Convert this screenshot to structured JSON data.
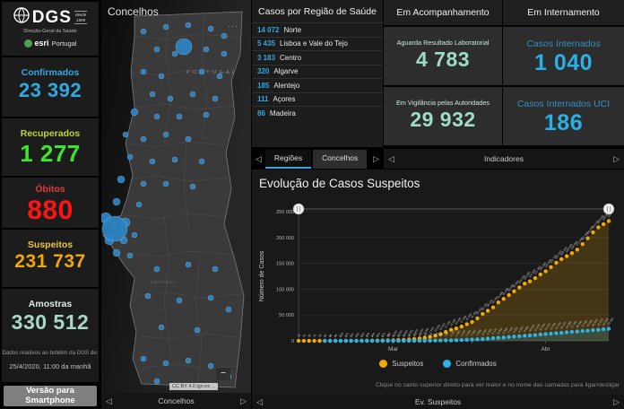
{
  "logo": {
    "org": "DGS",
    "since_line1": "desde",
    "since_line2": "1899",
    "subtitle": "Direção-Geral da Saúde",
    "partner_bold": "esri",
    "partner_rest": "Portugal"
  },
  "sidebar": {
    "stats": [
      {
        "label": "Confirmados",
        "value": "23 392",
        "label_color": "#2fa8e0",
        "value_color": "#2fa8e0"
      },
      {
        "label": "Recuperados",
        "value": "1 277",
        "label_color": "#b9d437",
        "value_color": "#3fe42c"
      },
      {
        "label": "Óbitos",
        "value": "880",
        "label_color": "#e03a3a",
        "value_color": "#ff1414"
      },
      {
        "label": "Suspeitos",
        "value": "231 737",
        "label_color": "#e8c63f",
        "value_color": "#f2a900"
      },
      {
        "label": "Amostras",
        "value": "330 512",
        "label_color": "#dfe9e5",
        "value_color": "#a6d9c6"
      }
    ],
    "footnote_line1": "Dados relativos ao boletim da DGS de:",
    "footnote_line2": "25/4/2020, 11:00 da manhã",
    "smartphone_button": "Versão para Smartphone"
  },
  "map_panel": {
    "title": "Concelhos",
    "overflow_dots": "···",
    "zoom_out_label": "−",
    "attribution": "CC BY 4.0 ign.es ...",
    "footer_label": "Concelhos",
    "country_label": "P O R T U G A L",
    "district_label": "S E T Ú B A L",
    "bubble_color": "#2c85c7",
    "bubbles": [
      [
        47,
        35,
        3
      ],
      [
        72,
        30,
        3
      ],
      [
        97,
        28,
        3
      ],
      [
        122,
        32,
        3
      ],
      [
        137,
        40,
        3
      ],
      [
        62,
        55,
        3
      ],
      [
        82,
        60,
        3
      ],
      [
        117,
        55,
        3
      ],
      [
        137,
        60,
        3
      ],
      [
        47,
        80,
        3
      ],
      [
        67,
        85,
        3
      ],
      [
        112,
        80,
        3
      ],
      [
        132,
        85,
        3
      ],
      [
        57,
        105,
        3
      ],
      [
        77,
        110,
        3
      ],
      [
        102,
        105,
        3
      ],
      [
        127,
        110,
        3
      ],
      [
        37,
        125,
        4
      ],
      [
        62,
        130,
        3
      ],
      [
        87,
        130,
        3
      ],
      [
        117,
        128,
        3
      ],
      [
        27,
        150,
        3
      ],
      [
        47,
        155,
        3
      ],
      [
        72,
        150,
        3
      ],
      [
        97,
        155,
        3
      ],
      [
        32,
        175,
        3
      ],
      [
        57,
        180,
        3
      ],
      [
        82,
        178,
        3
      ],
      [
        112,
        180,
        3
      ],
      [
        22,
        200,
        4
      ],
      [
        47,
        205,
        3
      ],
      [
        72,
        205,
        3
      ],
      [
        102,
        208,
        3
      ],
      [
        17,
        225,
        4
      ],
      [
        42,
        228,
        3
      ],
      [
        62,
        300,
        3
      ],
      [
        97,
        295,
        3
      ],
      [
        127,
        300,
        3
      ],
      [
        52,
        330,
        3
      ],
      [
        87,
        335,
        3
      ],
      [
        122,
        332,
        3
      ],
      [
        67,
        365,
        3
      ],
      [
        107,
        368,
        3
      ],
      [
        142,
        345,
        3
      ],
      [
        47,
        400,
        3
      ],
      [
        72,
        405,
        3
      ],
      [
        97,
        402,
        3
      ],
      [
        122,
        408,
        3
      ],
      [
        142,
        420,
        3
      ],
      [
        62,
        425,
        3
      ],
      [
        5,
        243,
        6
      ],
      [
        27,
        248,
        5
      ],
      [
        9,
        268,
        5
      ],
      [
        25,
        268,
        4
      ],
      [
        37,
        262,
        3
      ],
      [
        17,
        282,
        4
      ],
      [
        32,
        285,
        3
      ],
      [
        92,
        52,
        9
      ],
      [
        15,
        255,
        14
      ]
    ]
  },
  "regions_panel": {
    "title": "Casos por Região de Saúde",
    "value_color": "#2fa8e0",
    "rows": [
      {
        "value": "14 072",
        "name": "Norte"
      },
      {
        "value": "5 435",
        "name": "Lisboa e Vale do Tejo"
      },
      {
        "value": "3 183",
        "name": "Centro"
      },
      {
        "value": "320",
        "name": "Algarve"
      },
      {
        "value": "185",
        "name": "Alentejo"
      },
      {
        "value": "111",
        "name": "Açores"
      },
      {
        "value": "86",
        "name": "Madeira"
      }
    ],
    "tabs": [
      {
        "label": "Regiões",
        "active": true
      },
      {
        "label": "Concelhos",
        "active": false
      }
    ]
  },
  "monitoring_panel": {
    "title": "Em Acompanhamento",
    "label_color": "#cfe6db",
    "value_color": "#9ddcc6",
    "cards": [
      {
        "label": "Aguarda Resultado Laboratorial",
        "value": "4 783"
      },
      {
        "label": "Em Vigilância pelas Autoridades",
        "value": "29 932"
      }
    ]
  },
  "hospital_panel": {
    "title": "Em Internamento",
    "label_color": "#3390c2",
    "value_color": "#29b0e8",
    "cards": [
      {
        "label": "Casos Internados",
        "value": "1 040"
      },
      {
        "label": "Casos Internados UCI",
        "value": "186"
      }
    ]
  },
  "indicators_bar": {
    "label": "Indicadores"
  },
  "chart_panel": {
    "title": "Evolução de Casos Suspeitos",
    "hint": "Clique no canto superior direito para ver maior e no nome das camadas para ligar/desligar",
    "footer_label": "Ev. Suspeitos"
  },
  "nav_arrows": {
    "left": "◁",
    "right": "▷"
  },
  "chart_data": {
    "type": "line",
    "title": "Evolução de Casos Suspeitos",
    "xlabel": "",
    "ylabel": "Número de Casos",
    "ylim": [
      0,
      250000
    ],
    "grid": true,
    "legend_position": "bottom",
    "y_ticks": [
      "0",
      "50 000",
      "100 000",
      "150 000",
      "200 000",
      "250 000"
    ],
    "x_ticks": [
      {
        "index": 18,
        "label": "Mar"
      },
      {
        "index": 33,
        "label": ""
      },
      {
        "index": 47,
        "label": "Abr"
      }
    ],
    "series": [
      {
        "name": "Suspeitos",
        "color": "#f2a900",
        "fill": "rgba(242,169,0,0.20)",
        "values": [
          25,
          31,
          38,
          46,
          59,
          70,
          83,
          95,
          108,
          121,
          141,
          180,
          230,
          300,
          390,
          510,
          670,
          880,
          1150,
          1510,
          1980,
          2600,
          3400,
          4450,
          5830,
          7640,
          10000,
          13100,
          17200,
          21380,
          23920,
          27600,
          32200,
          36400,
          43500,
          52000,
          58400,
          64700,
          74300,
          81200,
          88600,
          95900,
          103400,
          110800,
          115100,
          121300,
          128400,
          134600,
          142700,
          151300,
          158200,
          163900,
          169800,
          176500,
          187400,
          198600,
          210100,
          219800,
          225900,
          231737
        ]
      },
      {
        "name": "Confirmados",
        "color": "#2ab4e8",
        "fill": "rgba(42,180,232,0.18)",
        "values": [
          null,
          null,
          null,
          null,
          null,
          0,
          0,
          0,
          0,
          0,
          0,
          0,
          0,
          2,
          2,
          5,
          8,
          13,
          21,
          30,
          41,
          59,
          112,
          169,
          245,
          331,
          448,
          642,
          785,
          1020,
          1280,
          1600,
          2060,
          2362,
          2995,
          3544,
          4268,
          5170,
          5962,
          6408,
          7443,
          8251,
          9034,
          9886,
          10524,
          11278,
          12442,
          13141,
          13956,
          14760,
          15472,
          16585,
          17448,
          18091,
          19022,
          19685,
          20863,
          21379,
          22353,
          23392
        ]
      }
    ]
  }
}
